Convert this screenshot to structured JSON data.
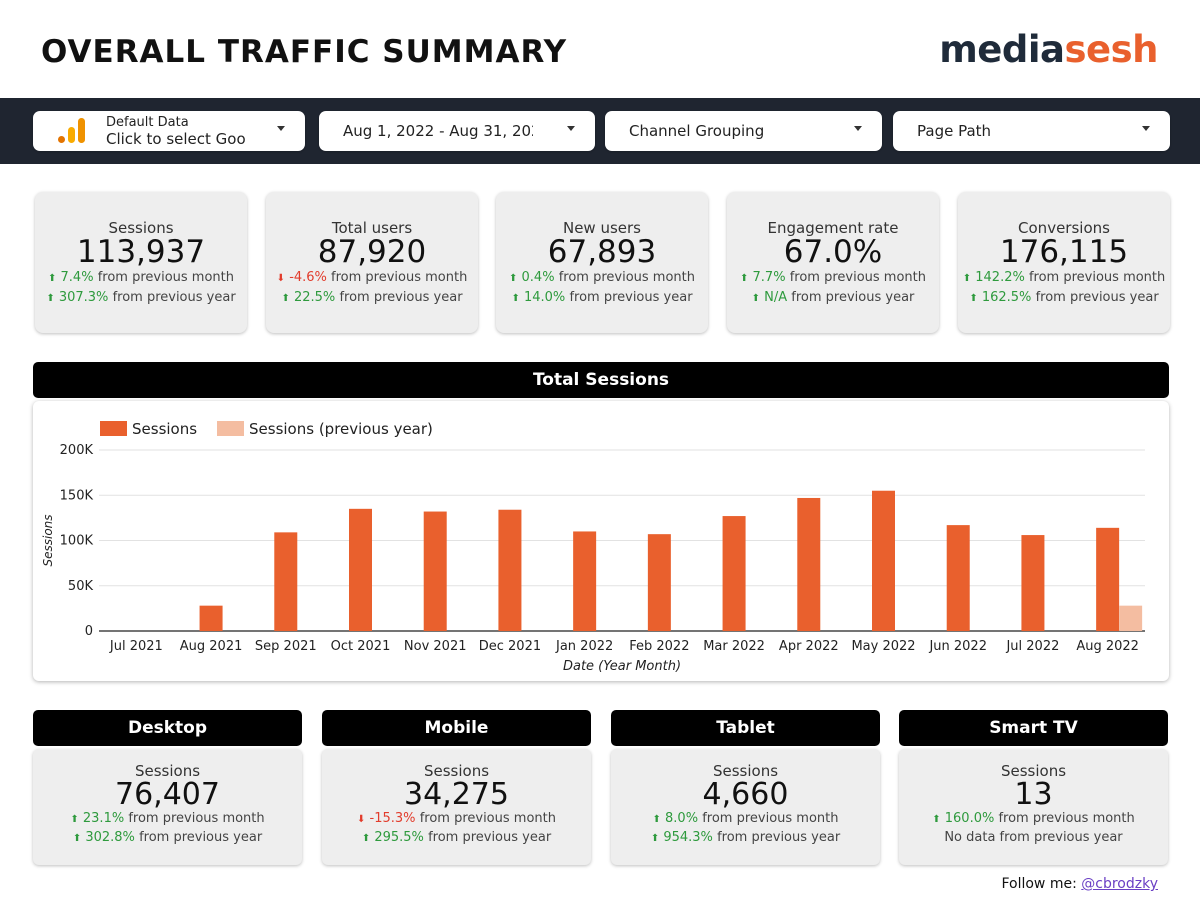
{
  "header": {
    "title": "OVERALL TRAFFIC SUMMARY",
    "logo_part1": "media",
    "logo_part2": "sesh"
  },
  "filters": {
    "data_source_small": "Default Data",
    "data_source_main": "Click to select Goo",
    "date_range": "Aug 1, 2022 - Aug 31, 202",
    "channel": "Channel Grouping",
    "page_path": "Page Path"
  },
  "kpis": [
    {
      "label": "Sessions",
      "value": "113,937",
      "month_arrow": "⬆",
      "month_change": "7.4%",
      "month_text": "from previous month",
      "month_dir": "up",
      "year_arrow": "⬆",
      "year_change": "307.3%",
      "year_text": "from previous year",
      "year_dir": "up"
    },
    {
      "label": "Total users",
      "value": "87,920",
      "month_arrow": "⬇",
      "month_change": "-4.6%",
      "month_text": "from previous month",
      "month_dir": "down",
      "year_arrow": "⬆",
      "year_change": "22.5%",
      "year_text": "from previous year",
      "year_dir": "up"
    },
    {
      "label": "New users",
      "value": "67,893",
      "month_arrow": "⬆",
      "month_change": "0.4%",
      "month_text": "from previous month",
      "month_dir": "up",
      "year_arrow": "⬆",
      "year_change": "14.0%",
      "year_text": "from previous year",
      "year_dir": "up"
    },
    {
      "label": "Engagement rate",
      "value": "67.0%",
      "month_arrow": "⬆",
      "month_change": "7.7%",
      "month_text": "from previous month",
      "month_dir": "up",
      "year_arrow": "⬆",
      "year_change": "N/A",
      "year_text": "from previous year",
      "year_dir": "up"
    },
    {
      "label": "Conversions",
      "value": "176,115",
      "month_arrow": "⬆",
      "month_change": "142.2%",
      "month_text": "from previous month",
      "month_dir": "up",
      "year_arrow": "⬆",
      "year_change": "162.5%",
      "year_text": "from previous year",
      "year_dir": "up"
    }
  ],
  "sessions_section": {
    "title": "Total Sessions"
  },
  "chart_data": {
    "type": "bar",
    "title": "",
    "xlabel": "Date (Year Month)",
    "ylabel": "Sessions",
    "ylim": [
      0,
      200000
    ],
    "yticks": [
      0,
      50000,
      100000,
      150000,
      200000
    ],
    "ytick_labels": [
      "0",
      "50K",
      "100K",
      "150K",
      "200K"
    ],
    "grid": true,
    "legend_position": "top-left",
    "categories": [
      "Jul 2021",
      "Aug 2021",
      "Sep 2021",
      "Oct 2021",
      "Nov 2021",
      "Dec 2021",
      "Jan 2022",
      "Feb 2022",
      "Mar 2022",
      "Apr 2022",
      "May 2022",
      "Jun 2022",
      "Jul 2022",
      "Aug 2022"
    ],
    "series": [
      {
        "name": "Sessions",
        "color": "#e9602d",
        "values": [
          0,
          28000,
          109000,
          135000,
          132000,
          134000,
          110000,
          107000,
          127000,
          147000,
          155000,
          117000,
          106000,
          114000
        ]
      },
      {
        "name": "Sessions (previous year)",
        "color": "#f4bda1",
        "values": [
          0,
          0,
          0,
          0,
          0,
          0,
          0,
          0,
          0,
          0,
          0,
          0,
          0,
          28000
        ]
      }
    ]
  },
  "devices": [
    {
      "title": "Desktop",
      "label": "Sessions",
      "value": "76,407",
      "month_arrow": "⬆",
      "month_change": "23.1%",
      "month_text": "from previous month",
      "month_dir": "up",
      "year_arrow": "⬆",
      "year_change": "302.8%",
      "year_text": "from previous year",
      "year_dir": "up"
    },
    {
      "title": "Mobile",
      "label": "Sessions",
      "value": "34,275",
      "month_arrow": "⬇",
      "month_change": "-15.3%",
      "month_text": "from previous month",
      "month_dir": "down",
      "year_arrow": "⬆",
      "year_change": "295.5%",
      "year_text": "from previous year",
      "year_dir": "up"
    },
    {
      "title": "Tablet",
      "label": "Sessions",
      "value": "4,660",
      "month_arrow": "⬆",
      "month_change": "8.0%",
      "month_text": "from previous month",
      "month_dir": "up",
      "year_arrow": "⬆",
      "year_change": "954.3%",
      "year_text": "from previous year",
      "year_dir": "up"
    },
    {
      "title": "Smart TV",
      "label": "Sessions",
      "value": "13",
      "month_arrow": "⬆",
      "month_change": "160.0%",
      "month_text": "from previous month",
      "month_dir": "up",
      "year_arrow": "",
      "year_change": "",
      "year_text": "No data from previous year",
      "year_dir": "none"
    }
  ],
  "footer": {
    "follow_text": "Follow me:",
    "handle": "@cbrodzky"
  },
  "colors": {
    "accent": "#e9602d",
    "accent_light": "#f4bda1",
    "dark_bar": "#1f2530",
    "up": "#2e9a3d",
    "down": "#e23c2c"
  },
  "icons": {
    "data_source": "google-analytics-icon",
    "dropdown": "caret-down-icon"
  }
}
